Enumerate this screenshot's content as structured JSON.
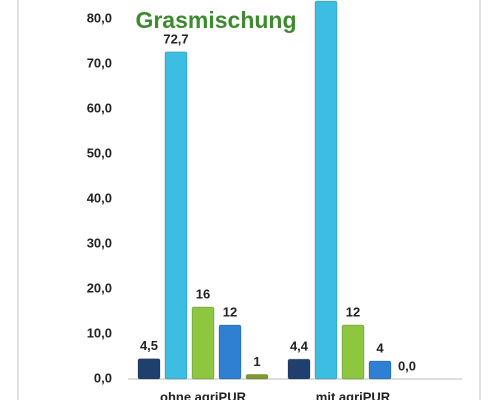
{
  "chart_data": {
    "type": "bar",
    "title": "Grasmischung",
    "categories": [
      "ohne agriPUR",
      "mit agriPUR"
    ],
    "series": [
      {
        "color": "#1f3f6e",
        "values": [
          4.5,
          4.4
        ],
        "value_labels": [
          "4,5",
          "4,4"
        ]
      },
      {
        "color": "#3cbde2",
        "values": [
          72.7,
          84
        ],
        "value_labels": [
          "72,7",
          null
        ]
      },
      {
        "color": "#8dc63f",
        "values": [
          16,
          12
        ],
        "value_labels": [
          "16",
          "12"
        ]
      },
      {
        "color": "#2f7fd3",
        "values": [
          12,
          4
        ],
        "value_labels": [
          "12",
          "4"
        ]
      },
      {
        "color": "#7d9c2c",
        "values": [
          1,
          0.0
        ],
        "value_labels": [
          "1",
          "0,0"
        ]
      }
    ],
    "ylim": [
      0,
      84
    ],
    "yticks": [
      {
        "value": 0,
        "label": "0,0"
      },
      {
        "value": 10,
        "label": "10,0"
      },
      {
        "value": 20,
        "label": "20,0"
      },
      {
        "value": 30,
        "label": "30,0"
      },
      {
        "value": 40,
        "label": "40,0"
      },
      {
        "value": 50,
        "label": "50,0"
      },
      {
        "value": 60,
        "label": "60,0"
      },
      {
        "value": 70,
        "label": "70,0"
      },
      {
        "value": 80,
        "label": "80,0"
      }
    ],
    "grid": false
  }
}
